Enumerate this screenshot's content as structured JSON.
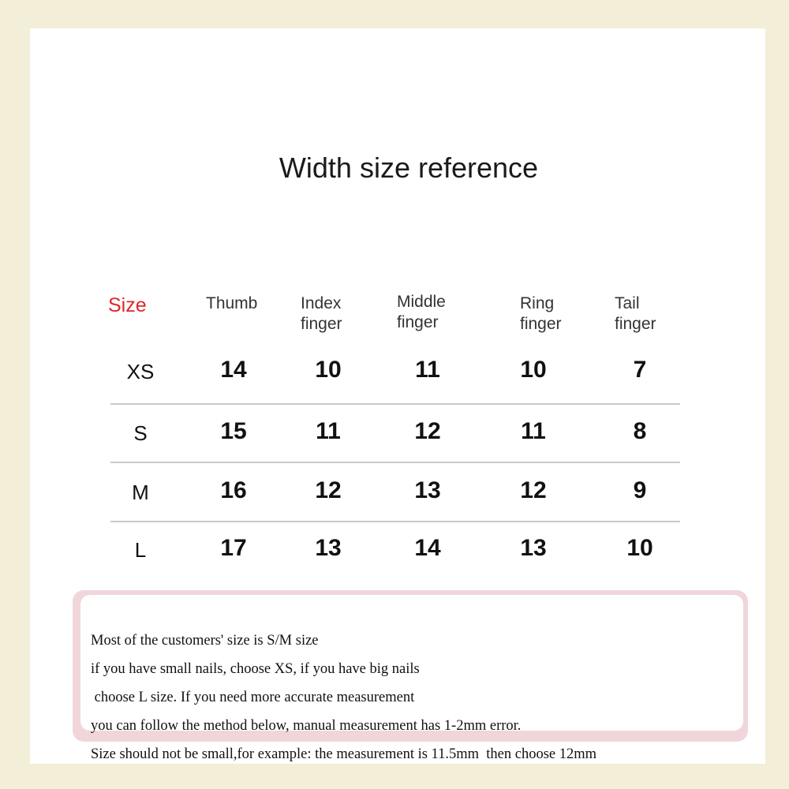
{
  "title": "Width size reference",
  "table": {
    "headers": [
      "Size",
      "Thumb",
      "Index\nfinger",
      "Middle\nfinger",
      "Ring\nfinger",
      "Tail\nfinger"
    ],
    "rows": [
      {
        "size": "XS",
        "values": [
          "14",
          "10",
          "11",
          "10",
          "7"
        ]
      },
      {
        "size": "S",
        "values": [
          "15",
          "11",
          "12",
          "11",
          "8"
        ]
      },
      {
        "size": "M",
        "values": [
          "16",
          "12",
          "13",
          "12",
          "9"
        ]
      },
      {
        "size": "L",
        "values": [
          "17",
          "13",
          "14",
          "13",
          "10"
        ]
      }
    ]
  },
  "note": {
    "lines": [
      "Most of the customers' size is S/M size",
      "if you have small nails, choose XS, if you have big nails",
      " choose L size. If you need more accurate measurement",
      "you can follow the method below, manual measurement has 1-2mm error.",
      "Size should not be small,for example: the measurement is 11.5mm  then choose 12mm"
    ]
  },
  "colors": {
    "size_header": "#e0262b",
    "frame": "#f2eed8",
    "note_border": "#f0d6da"
  }
}
